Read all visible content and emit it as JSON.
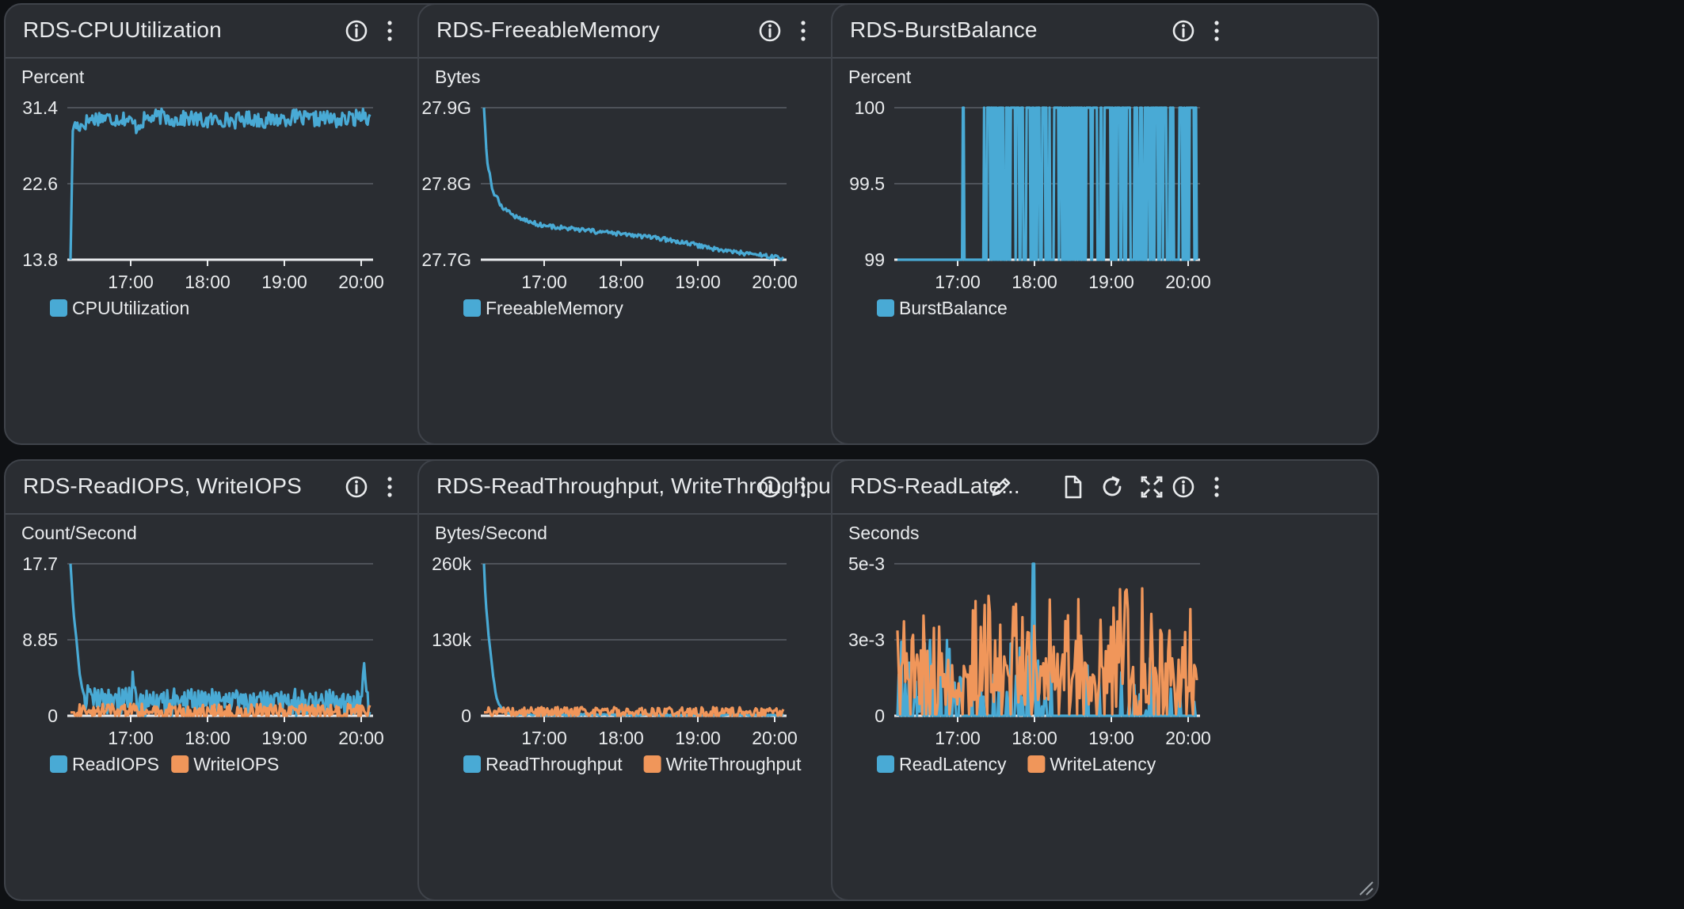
{
  "theme": {
    "blue": "#49aad5",
    "orange": "#f0965a",
    "grid": "#5a5e66",
    "text": "#e9ebed",
    "panel": "#2a2d32"
  },
  "widgets": [
    {
      "id": "cpu",
      "title": "RDS-CPUUtilization",
      "icons": [
        "info-icon",
        "more-menu-icon"
      ],
      "chart_data": {
        "type": "line",
        "title": "RDS-CPUUtilization",
        "ylabel": "Percent",
        "x_ticks": [
          "17:00",
          "18:00",
          "19:00",
          "20:00"
        ],
        "x_range": [
          "16:08",
          "20:10"
        ],
        "yticks": [
          "31.4",
          "22.6",
          "13.8"
        ],
        "ylim": [
          13.8,
          31.4
        ],
        "legend_position": "bottom-left",
        "series": [
          {
            "name": "CPUUtilization",
            "color": "#49aad5",
            "points": [
              [
                0,
                13.8
              ],
              [
                0.008,
                29.3
              ],
              [
                0.04,
                29.4
              ],
              [
                0.06,
                30.0
              ],
              [
                0.1,
                30.3
              ],
              [
                0.14,
                30.1
              ],
              [
                0.18,
                30.2
              ],
              [
                0.2,
                29.8
              ],
              [
                0.22,
                29.2
              ],
              [
                0.25,
                30.1
              ],
              [
                0.3,
                30.4
              ],
              [
                0.35,
                30.0
              ],
              [
                0.4,
                30.2
              ],
              [
                0.45,
                29.8
              ],
              [
                0.5,
                30.1
              ],
              [
                0.55,
                29.9
              ],
              [
                0.6,
                30.2
              ],
              [
                0.65,
                29.9
              ],
              [
                0.7,
                30.1
              ],
              [
                0.75,
                30.3
              ],
              [
                0.8,
                30.0
              ],
              [
                0.85,
                30.2
              ],
              [
                0.9,
                29.9
              ],
              [
                0.95,
                30.2
              ],
              [
                0.98,
                30.8
              ],
              [
                1.0,
                30.0
              ]
            ],
            "noise": 0.9
          }
        ]
      }
    },
    {
      "id": "mem",
      "title": "RDS-FreeableMemory",
      "icons": [
        "info-icon",
        "more-menu-icon"
      ],
      "chart_data": {
        "type": "line",
        "title": "RDS-FreeableMemory",
        "ylabel": "Bytes",
        "x_ticks": [
          "17:00",
          "18:00",
          "19:00",
          "20:00"
        ],
        "x_range": [
          "16:08",
          "20:10"
        ],
        "yticks": [
          "27.9G",
          "27.8G",
          "27.7G"
        ],
        "ylim": [
          27.7,
          27.9
        ],
        "legend_position": "bottom-left",
        "series": [
          {
            "name": "FreeableMemory",
            "color": "#49aad5",
            "points": [
              [
                0,
                27.9
              ],
              [
                0.01,
                27.83
              ],
              [
                0.03,
                27.79
              ],
              [
                0.06,
                27.77
              ],
              [
                0.1,
                27.758
              ],
              [
                0.15,
                27.75
              ],
              [
                0.2,
                27.745
              ],
              [
                0.3,
                27.74
              ],
              [
                0.4,
                27.736
              ],
              [
                0.5,
                27.732
              ],
              [
                0.6,
                27.727
              ],
              [
                0.7,
                27.72
              ],
              [
                0.8,
                27.712
              ],
              [
                0.9,
                27.707
              ],
              [
                1.0,
                27.702
              ]
            ],
            "noise": 0.003
          }
        ]
      }
    },
    {
      "id": "burst",
      "title": "RDS-BurstBalance",
      "icons": [
        "info-icon",
        "more-menu-icon"
      ],
      "chart_data": {
        "type": "line",
        "title": "RDS-BurstBalance",
        "ylabel": "Percent",
        "x_ticks": [
          "17:00",
          "18:00",
          "19:00",
          "20:00"
        ],
        "x_range": [
          "16:08",
          "20:10"
        ],
        "yticks": [
          "100",
          "99.5",
          "99"
        ],
        "ylim": [
          99,
          100
        ],
        "legend_position": "bottom-left",
        "series": [
          {
            "name": "BurstBalance",
            "color": "#49aad5",
            "spikes_from": 0.22,
            "spikes_to": 1.0,
            "spike_count": 150,
            "first_spike": 0.22,
            "low": 99,
            "high": 100
          }
        ]
      }
    },
    {
      "id": "iops",
      "title": "RDS-ReadIOPS, WriteIOPS",
      "icons": [
        "info-icon",
        "more-menu-icon"
      ],
      "chart_data": {
        "type": "line",
        "title": "RDS-ReadIOPS, WriteIOPS",
        "ylabel": "Count/Second",
        "x_ticks": [
          "17:00",
          "18:00",
          "19:00",
          "20:00"
        ],
        "x_range": [
          "16:08",
          "20:10"
        ],
        "yticks": [
          "17.7",
          "8.85",
          "0"
        ],
        "ylim": [
          0,
          17.7
        ],
        "legend_position": "bottom-left",
        "series": [
          {
            "name": "ReadIOPS",
            "color": "#49aad5",
            "points": [
              [
                0,
                17.7
              ],
              [
                0.01,
                12
              ],
              [
                0.02,
                8.85
              ],
              [
                0.03,
                5
              ],
              [
                0.04,
                3
              ],
              [
                0.05,
                2
              ],
              [
                0.07,
                1.6
              ],
              [
                0.2,
                1.4
              ],
              [
                0.21,
                4.5
              ],
              [
                0.22,
                1.3
              ],
              [
                0.5,
                1.3
              ],
              [
                0.97,
                1.2
              ],
              [
                0.98,
                4.5
              ],
              [
                0.99,
                1.5
              ],
              [
                1.0,
                0.5
              ]
            ],
            "noise": 1.4,
            "noise_from": 0.05
          },
          {
            "name": "WriteIOPS",
            "color": "#f0965a",
            "points": [
              [
                0,
                0.4
              ],
              [
                1.0,
                0.4
              ]
            ],
            "noise": 1.0
          }
        ]
      }
    },
    {
      "id": "thr",
      "title": "RDS-ReadThroughput, WriteThroughput",
      "icons": [
        "info-icon",
        "more-menu-icon"
      ],
      "chart_data": {
        "type": "line",
        "title": "RDS-ReadThroughput, WriteThroughput",
        "ylabel": "Bytes/Second",
        "x_ticks": [
          "17:00",
          "18:00",
          "19:00",
          "20:00"
        ],
        "x_range": [
          "16:08",
          "20:10"
        ],
        "yticks": [
          "260k",
          "130k",
          "0"
        ],
        "ylim": [
          0,
          260
        ],
        "legend_position": "bottom-left",
        "series": [
          {
            "name": "ReadThroughput",
            "color": "#49aad5",
            "points": [
              [
                0,
                260
              ],
              [
                0.005,
                200
              ],
              [
                0.015,
                140
              ],
              [
                0.03,
                70
              ],
              [
                0.04,
                35
              ],
              [
                0.05,
                20
              ],
              [
                0.07,
                6
              ],
              [
                0.1,
                2
              ],
              [
                1.0,
                1
              ]
            ],
            "noise": 1.5
          },
          {
            "name": "WriteThroughput",
            "color": "#f0965a",
            "points": [
              [
                0,
                6
              ],
              [
                1.0,
                6
              ]
            ],
            "noise": 9
          }
        ]
      }
    },
    {
      "id": "lat",
      "title": "RDS-ReadLate...",
      "icons": [
        "edit-icon",
        "document-icon",
        "refresh-icon",
        "fullscreen-icon",
        "info-icon",
        "more-menu-icon"
      ],
      "chart_data": {
        "type": "line",
        "title": "RDS-ReadLatency, WriteLatency",
        "ylabel": "Seconds",
        "x_ticks": [
          "17:00",
          "18:00",
          "19:00",
          "20:00"
        ],
        "x_range": [
          "16:08",
          "20:10"
        ],
        "yticks": [
          "5e-3",
          "3e-3",
          "0"
        ],
        "ylim": [
          0,
          0.005
        ],
        "legend_position": "bottom-left",
        "series": [
          {
            "name": "ReadLatency",
            "color": "#49aad5",
            "spiky": true,
            "max": 0.0025,
            "big_spike_at": 0.455,
            "big_spike": 0.005
          },
          {
            "name": "WriteLatency",
            "color": "#f0965a",
            "spiky": true,
            "max": 0.0042
          }
        ]
      }
    }
  ]
}
